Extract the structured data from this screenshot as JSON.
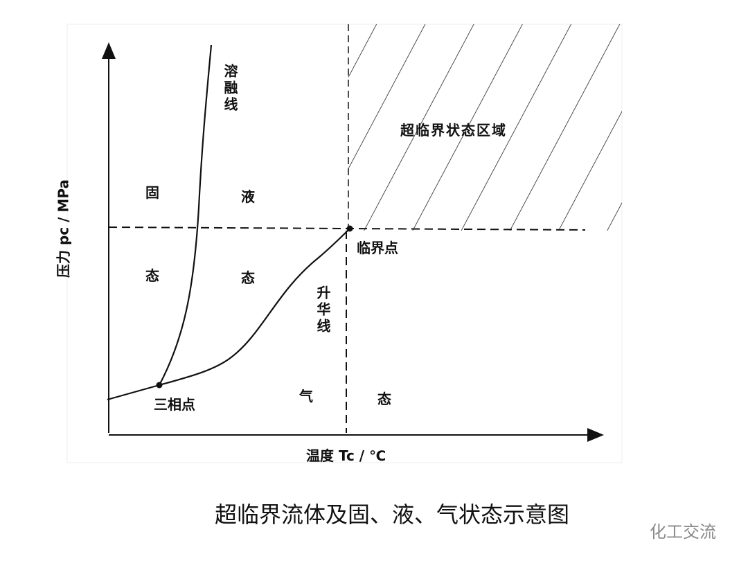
{
  "diagram": {
    "y_axis_label": "压力 pc / MPa",
    "x_axis_label": "温度 Tc / ℃",
    "melting_line_label": "溶融线",
    "sublimation_line_label": "升华线",
    "supercritical_region_label": "超临界状态区域",
    "critical_point_label": "临界点",
    "triple_point_label": "三相点",
    "solid_label": [
      "固",
      "态"
    ],
    "liquid_label": [
      "液",
      "态"
    ],
    "gas_label": [
      "气",
      "态"
    ],
    "caption": "超临界流体及固、液、气状态示意图",
    "watermark": "化工交流"
  }
}
